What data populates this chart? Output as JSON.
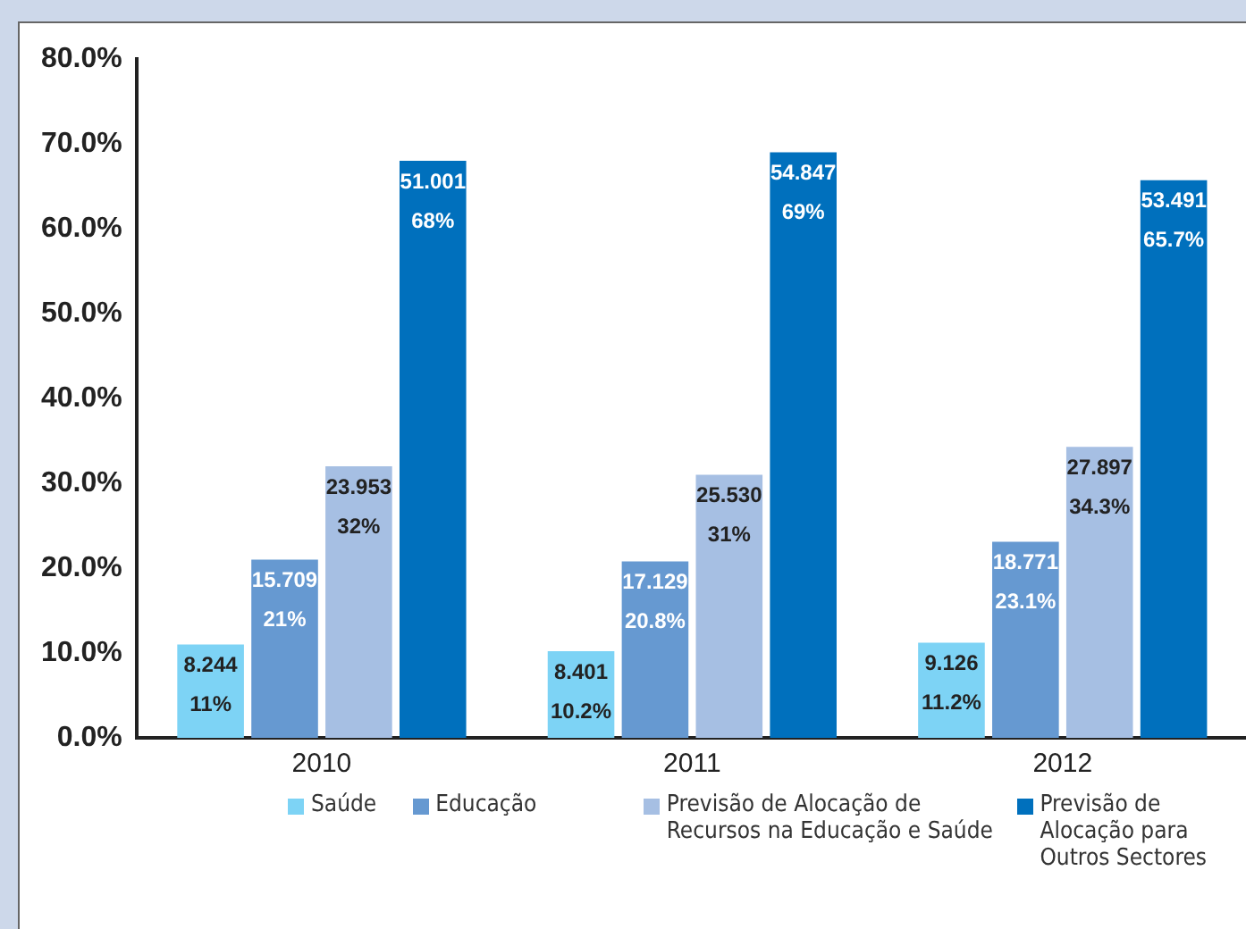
{
  "chart_data": {
    "type": "bar",
    "categories": [
      "2010",
      "2011",
      "2012"
    ],
    "series": [
      {
        "name": "Saúde",
        "color": "#7dd3f5",
        "values": [
          11,
          10.2,
          11.2
        ],
        "value_labels": [
          "8.244\n11%",
          "8.401\n10.2%",
          "9.126\n11.2%"
        ]
      },
      {
        "name": "Educação",
        "color": "#6699d1",
        "values": [
          21,
          20.8,
          23.1
        ],
        "value_labels": [
          "15.709\n21%",
          "17.129\n20.8%",
          "18.771\n23.1%"
        ]
      },
      {
        "name": "Previsão de Alocação de Recursos na Educação e Saúde",
        "color": "#a6bfe3",
        "values": [
          32,
          31,
          34.3
        ],
        "value_labels": [
          "23.953\n32%",
          "25.530\n31%",
          "27.897\n34.3%"
        ]
      },
      {
        "name": "Previsão de Alocação para Outros Sectores",
        "color": "#0070bd",
        "values": [
          68,
          69,
          65.7
        ],
        "value_labels": [
          "51.001\n68%",
          "54.847\n69%",
          "53.491\n65.7%"
        ]
      }
    ],
    "ylim": [
      0,
      80
    ],
    "yticks": [
      {
        "value": 0,
        "label": "0.0%"
      },
      {
        "value": 10,
        "label": "10.0%"
      },
      {
        "value": 20,
        "label": "20.0%"
      },
      {
        "value": 30,
        "label": "30.0%"
      },
      {
        "value": 40,
        "label": "40.0%"
      },
      {
        "value": 50,
        "label": "50.0%"
      },
      {
        "value": 60,
        "label": "60.0%"
      },
      {
        "value": 70,
        "label": "70.0%"
      },
      {
        "value": 80,
        "label": "80.0%"
      }
    ],
    "grid": false,
    "legend": "bottom"
  }
}
